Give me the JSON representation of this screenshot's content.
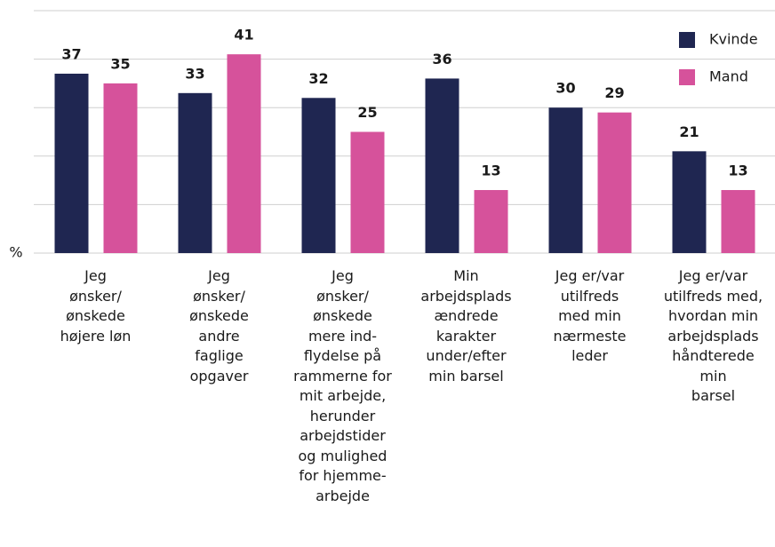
{
  "chart_data": {
    "type": "bar",
    "y_label": "%",
    "categories": [
      "Jeg\nønsker/\nønskede\nhøjere løn",
      "Jeg\nønsker/\nønskede\nandre\nfaglige\nopgaver",
      "Jeg\nønsker/\nønskede\nmere ind-\nflydelse på\nrammerne for\nmit arbejde,\nherunder\narbejdstider\nog mulighed\nfor hjemme-\narbejde",
      "Min\narbejdsplads\nændrede\nkarakter\nunder/efter\nmin barsel",
      "Jeg er/var\nutilfreds\nmed min\nnærmeste\nleder",
      "Jeg er/var\nutilfreds med,\nhvordan min\narbejdsplads\nhåndterede\nmin\nbarsel"
    ],
    "series": [
      {
        "name": "Kvinde",
        "color": "#1f2651",
        "values": [
          37,
          33,
          32,
          36,
          30,
          21
        ]
      },
      {
        "name": "Mand",
        "color": "#d6529b",
        "values": [
          35,
          41,
          25,
          13,
          29,
          13
        ]
      }
    ],
    "ylim": [
      0,
      50
    ],
    "yticks": [
      0,
      10,
      20,
      30,
      40,
      50
    ],
    "grid": true,
    "legend": "top-right"
  }
}
